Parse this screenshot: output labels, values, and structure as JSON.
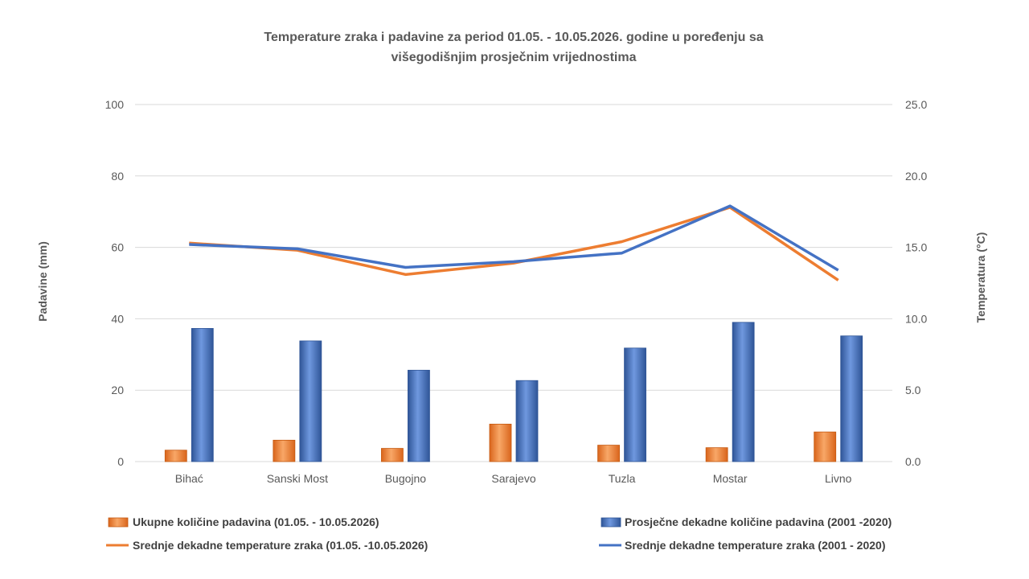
{
  "chart_data": {
    "type": "bar",
    "title_line1": "Temperature zraka i padavine za period 01.05. - 10.05.2026. godine u poređenju sa",
    "title_line2": "višegodišnjim prosječnim vrijednostima",
    "categories": [
      "Bihać",
      "Sanski Most",
      "Bugojno",
      "Sarajevo",
      "Tuzla",
      "Mostar",
      "Livno"
    ],
    "ylabel": "Padavine (mm)",
    "y2label": "Temperatura (°C)",
    "ylim": [
      0,
      100
    ],
    "y2lim": [
      0,
      25
    ],
    "yticks": [
      "0",
      "20",
      "40",
      "60",
      "80",
      "100"
    ],
    "y2ticks": [
      "0.0",
      "5.0",
      "10.0",
      "15.0",
      "20.0",
      "25.0"
    ],
    "grid": true,
    "legend_position": "bottom",
    "series": [
      {
        "name": "Ukupne količine padavina (01.05. - 10.05.2026)",
        "type": "bar",
        "axis": "left",
        "color": "#ED7D31",
        "values": [
          3.2,
          6.0,
          3.7,
          10.5,
          4.6,
          3.9,
          8.3
        ]
      },
      {
        "name": "Prosječne dekadne količine padavina (2001 -2020)",
        "type": "bar",
        "axis": "left",
        "color": "#4472C4",
        "values": [
          37.3,
          33.8,
          25.6,
          22.7,
          31.8,
          39.0,
          35.2
        ]
      },
      {
        "name": "Srednje dekadne temperature zraka (01.05. -10.05.2026)",
        "type": "line",
        "axis": "right",
        "color": "#ED7D31",
        "values": [
          15.3,
          14.8,
          13.1,
          13.9,
          15.4,
          17.8,
          12.7
        ]
      },
      {
        "name": "Srednje dekadne temperature zraka (2001 - 2020)",
        "type": "line",
        "axis": "right",
        "color": "#4472C4",
        "values": [
          15.2,
          14.9,
          13.6,
          14.0,
          14.6,
          17.9,
          13.4
        ]
      }
    ]
  }
}
